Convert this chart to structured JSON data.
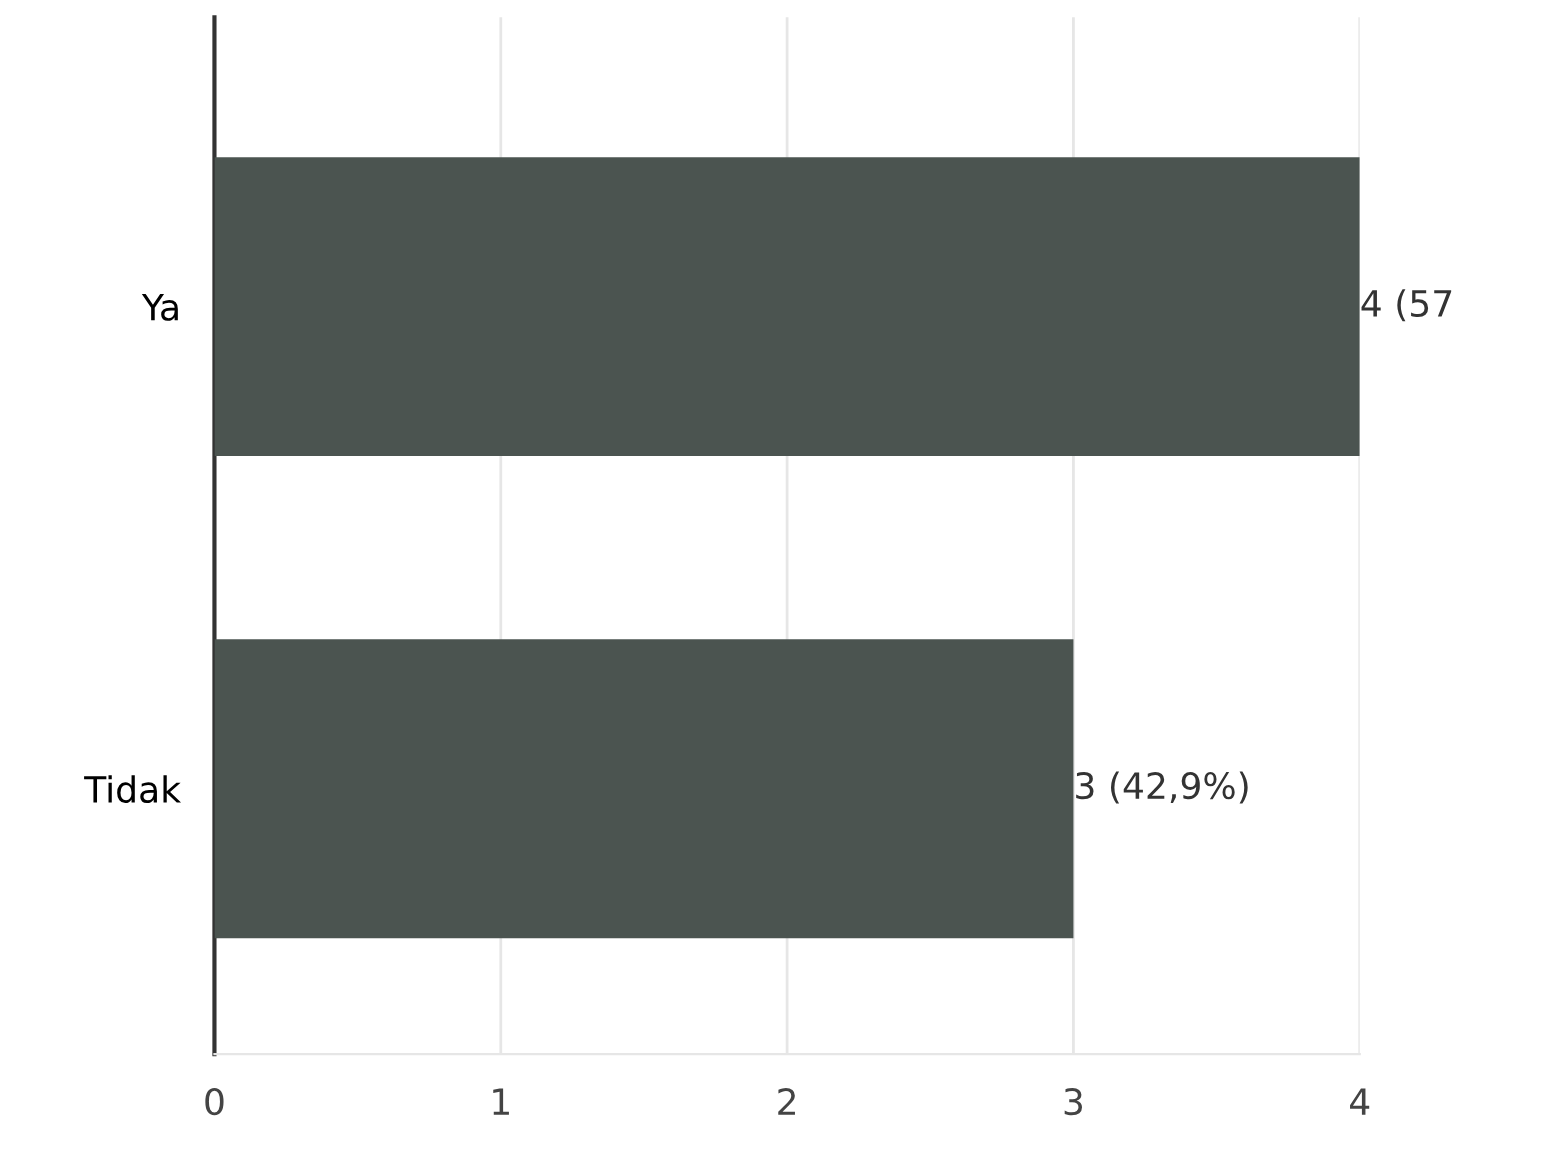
{
  "chart_data": {
    "type": "bar",
    "orientation": "horizontal",
    "categories": [
      "Ya",
      "Tidak"
    ],
    "values": [
      4,
      3
    ],
    "color": "#4b5450",
    "value_labels": [
      "4 (57",
      "3 (42,9%)"
    ],
    "xlim": [
      0,
      4
    ],
    "xticks": [
      0,
      1,
      2,
      3,
      4
    ],
    "grid": "x"
  }
}
